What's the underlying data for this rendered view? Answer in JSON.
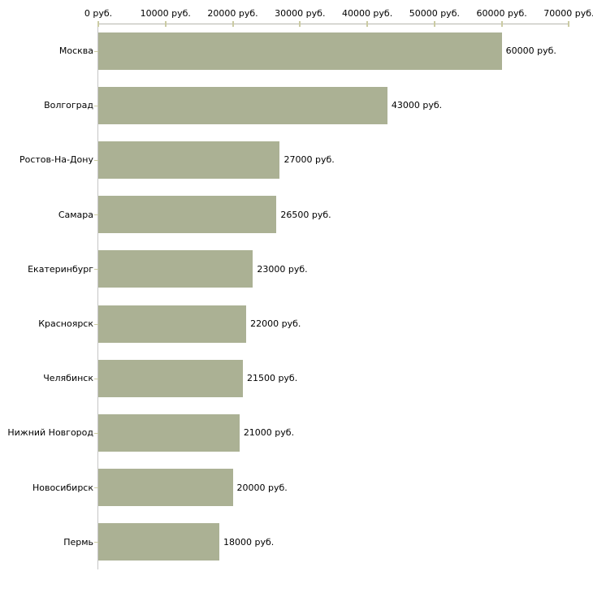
{
  "chart_data": {
    "type": "bar",
    "orientation": "horizontal",
    "title": "",
    "xlabel": "",
    "ylabel": "",
    "unit_suffix": " руб.",
    "categories": [
      "Москва",
      "Волгоград",
      "Ростов-На-Дону",
      "Самара",
      "Екатеринбург",
      "Красноярск",
      "Челябинск",
      "Нижний Новгород",
      "Новосибирск",
      "Пермь"
    ],
    "values": [
      60000,
      43000,
      27000,
      26500,
      23000,
      22000,
      21500,
      21000,
      20000,
      18000
    ],
    "value_labels": [
      "60000 руб.",
      "43000 руб.",
      "27000 руб.",
      "26500 руб.",
      "23000 руб.",
      "22000 руб.",
      "21500 руб.",
      "21000 руб.",
      "20000 руб.",
      "18000 руб."
    ],
    "axis": {
      "min": 0,
      "max": 70000,
      "ticks": [
        0,
        10000,
        20000,
        30000,
        40000,
        50000,
        60000,
        70000
      ],
      "tick_labels": [
        "0 руб.",
        "10000 руб.",
        "20000 руб.",
        "30000 руб.",
        "40000 руб.",
        "50000 руб.",
        "60000 руб.",
        "70000 руб."
      ],
      "position": "top",
      "grid": "off",
      "legend": "none"
    },
    "colors": {
      "bar": "#abb194",
      "axis_line": "#b6b6ad",
      "tick_mark": "#cbcba3",
      "category_axis_line": "#c6c6c6",
      "text": "#000000",
      "background": "#ffffff"
    }
  }
}
